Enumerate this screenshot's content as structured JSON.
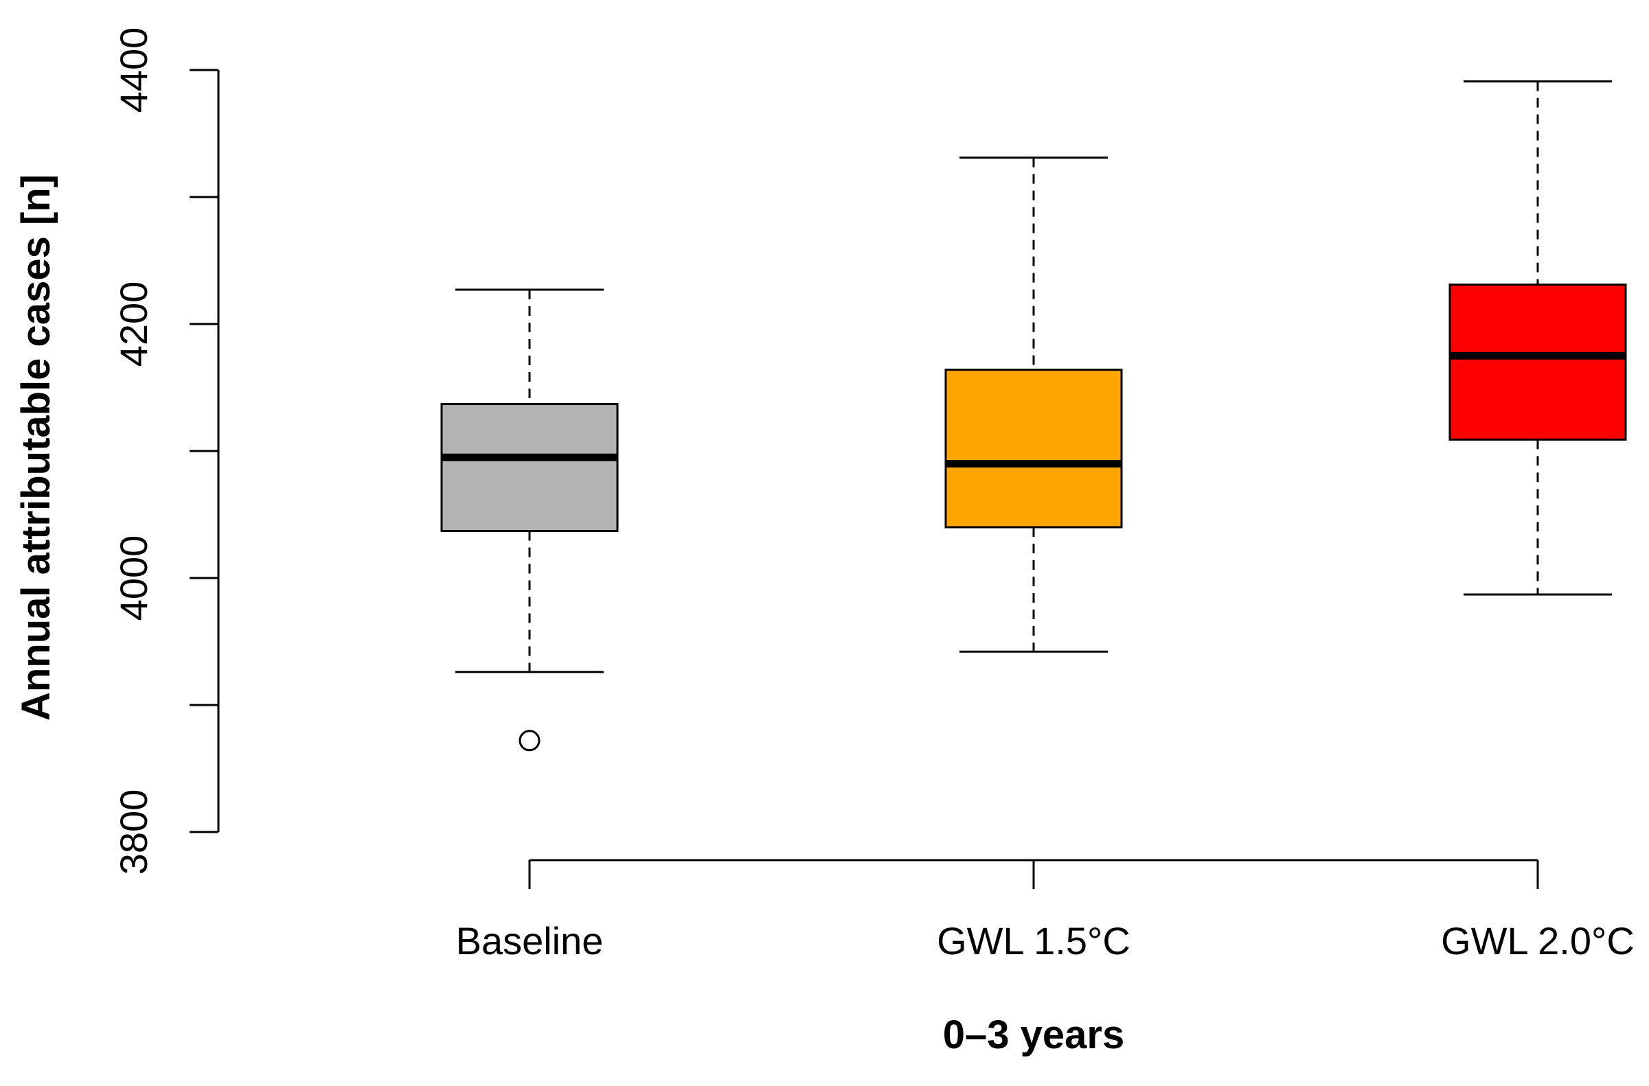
{
  "chart_data": {
    "type": "boxplot",
    "title": "",
    "xlabel": "0–3 years",
    "ylabel": "Annual attributable cases [n]",
    "ylim": [
      3800,
      4400
    ],
    "yticks": [
      3800,
      4000,
      4200,
      4400
    ],
    "ytick_labels": [
      "3800",
      "4000",
      "4200",
      "4400"
    ],
    "grid": false,
    "categories": [
      "Baseline",
      "GWL 1.5°C",
      "GWL 2.0°C"
    ],
    "boxes": [
      {
        "category": "Baseline",
        "whisker_low": 3926,
        "q1": 4037,
        "median": 4095,
        "q3": 4137,
        "whisker_high": 4227,
        "outliers": [
          3872
        ],
        "color": "#b3b3b3"
      },
      {
        "category": "GWL 1.5°C",
        "whisker_low": 3942,
        "q1": 4040,
        "median": 4090,
        "q3": 4164,
        "whisker_high": 4331,
        "outliers": [],
        "color": "#ffa500"
      },
      {
        "category": "GWL 2.0°C",
        "whisker_low": 3987,
        "q1": 4109,
        "median": 4175,
        "q3": 4231,
        "whisker_high": 4391,
        "outliers": [],
        "color": "#ff0000"
      }
    ]
  }
}
